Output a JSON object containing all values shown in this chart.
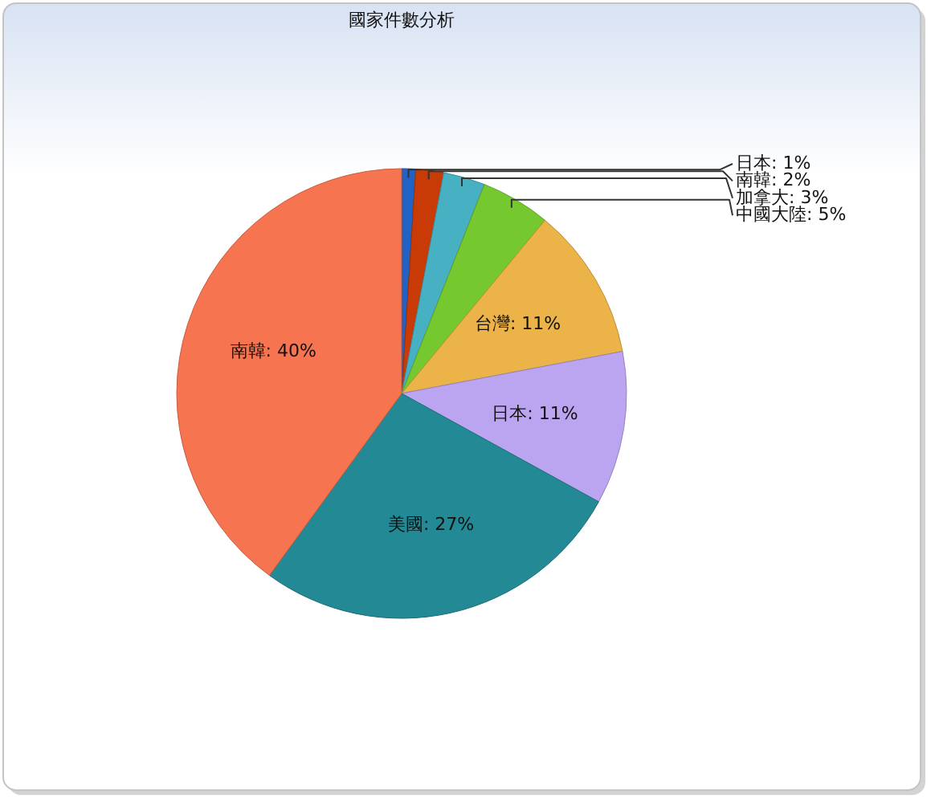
{
  "chart_data": {
    "type": "pie",
    "title": "國家件數分析",
    "categories": [
      "日本",
      "南韓",
      "加拿大",
      "中國大陸",
      "台灣",
      "日本",
      "美國",
      "南韓"
    ],
    "values": [
      1,
      2,
      3,
      5,
      11,
      11,
      27,
      40
    ],
    "value_labels": [
      ": 1%",
      ": 2%",
      ": 3%",
      ": 5%",
      ": 11%",
      ": 11%",
      ": 27%",
      ": 40%"
    ],
    "colors": [
      "#2162c4",
      "#c83a06",
      "#47b0c3",
      "#76c82f",
      "#ebb348",
      "#bba4f0",
      "#228995",
      "#f77450"
    ]
  }
}
